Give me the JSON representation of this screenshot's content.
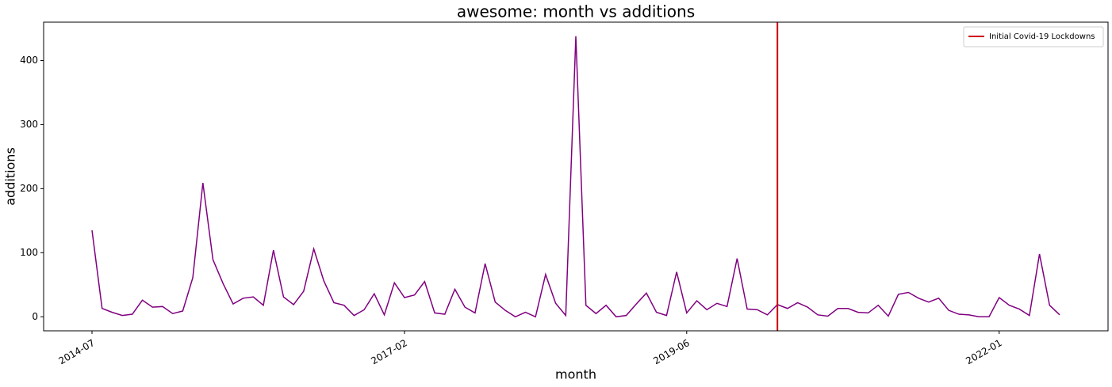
{
  "chart_data": {
    "type": "line",
    "title": "awesome: month vs additions",
    "x_label": "month",
    "y_label": "additions",
    "x": [
      "2014-07",
      "2014-08",
      "2014-09",
      "2014-10",
      "2014-11",
      "2014-12",
      "2015-01",
      "2015-02",
      "2015-03",
      "2015-04",
      "2015-05",
      "2015-06",
      "2015-07",
      "2015-08",
      "2015-09",
      "2015-10",
      "2015-11",
      "2015-12",
      "2016-01",
      "2016-02",
      "2016-03",
      "2016-04",
      "2016-05",
      "2016-06",
      "2016-07",
      "2016-08",
      "2016-09",
      "2016-10",
      "2016-11",
      "2016-12",
      "2017-01",
      "2017-02",
      "2017-03",
      "2017-04",
      "2017-05",
      "2017-06",
      "2017-07",
      "2017-08",
      "2017-09",
      "2017-10",
      "2017-11",
      "2017-12",
      "2018-01",
      "2018-02",
      "2018-03",
      "2018-04",
      "2018-05",
      "2018-06",
      "2018-07",
      "2018-08",
      "2018-09",
      "2018-10",
      "2018-11",
      "2018-12",
      "2019-01",
      "2019-02",
      "2019-03",
      "2019-04",
      "2019-05",
      "2019-06",
      "2019-07",
      "2019-08",
      "2019-09",
      "2019-10",
      "2019-11",
      "2019-12",
      "2020-01",
      "2020-02",
      "2020-03",
      "2020-04",
      "2020-05",
      "2020-06",
      "2020-07",
      "2020-08",
      "2020-09",
      "2020-10",
      "2020-11",
      "2020-12",
      "2021-01",
      "2021-02",
      "2021-03",
      "2021-04",
      "2021-05",
      "2021-06",
      "2021-07",
      "2021-08",
      "2021-09",
      "2021-10",
      "2021-11",
      "2021-12",
      "2022-01",
      "2022-02",
      "2022-03",
      "2022-04",
      "2022-05",
      "2022-06",
      "2022-07"
    ],
    "values": [
      135,
      13,
      7,
      2,
      4,
      26,
      15,
      16,
      5,
      9,
      61,
      209,
      89,
      52,
      20,
      29,
      31,
      18,
      104,
      31,
      19,
      40,
      106,
      56,
      22,
      18,
      2,
      11,
      36,
      3,
      53,
      30,
      34,
      55,
      6,
      4,
      43,
      15,
      6,
      83,
      23,
      10,
      0,
      7,
      0,
      66,
      21,
      2,
      438,
      18,
      5,
      18,
      0,
      2,
      20,
      37,
      7,
      2,
      70,
      6,
      25,
      11,
      21,
      16,
      91,
      12,
      11,
      3,
      19,
      13,
      22,
      15,
      3,
      1,
      13,
      13,
      7,
      6,
      18,
      1,
      35,
      38,
      29,
      23,
      29,
      10,
      4,
      3,
      0,
      0,
      30,
      18,
      12,
      2,
      98,
      18,
      3
    ],
    "color": "#800080",
    "xticks": [
      "2014-07",
      "2017-02",
      "2019-06",
      "2022-01"
    ],
    "ylim": [
      -21.9,
      459.9
    ],
    "yticks": [
      0,
      100,
      200,
      300,
      400
    ],
    "vlines": [
      {
        "x": "2020-03",
        "label": "Initial Covid-19 Lockdowns",
        "color": "#cc0000"
      }
    ],
    "legend": "upper right"
  }
}
